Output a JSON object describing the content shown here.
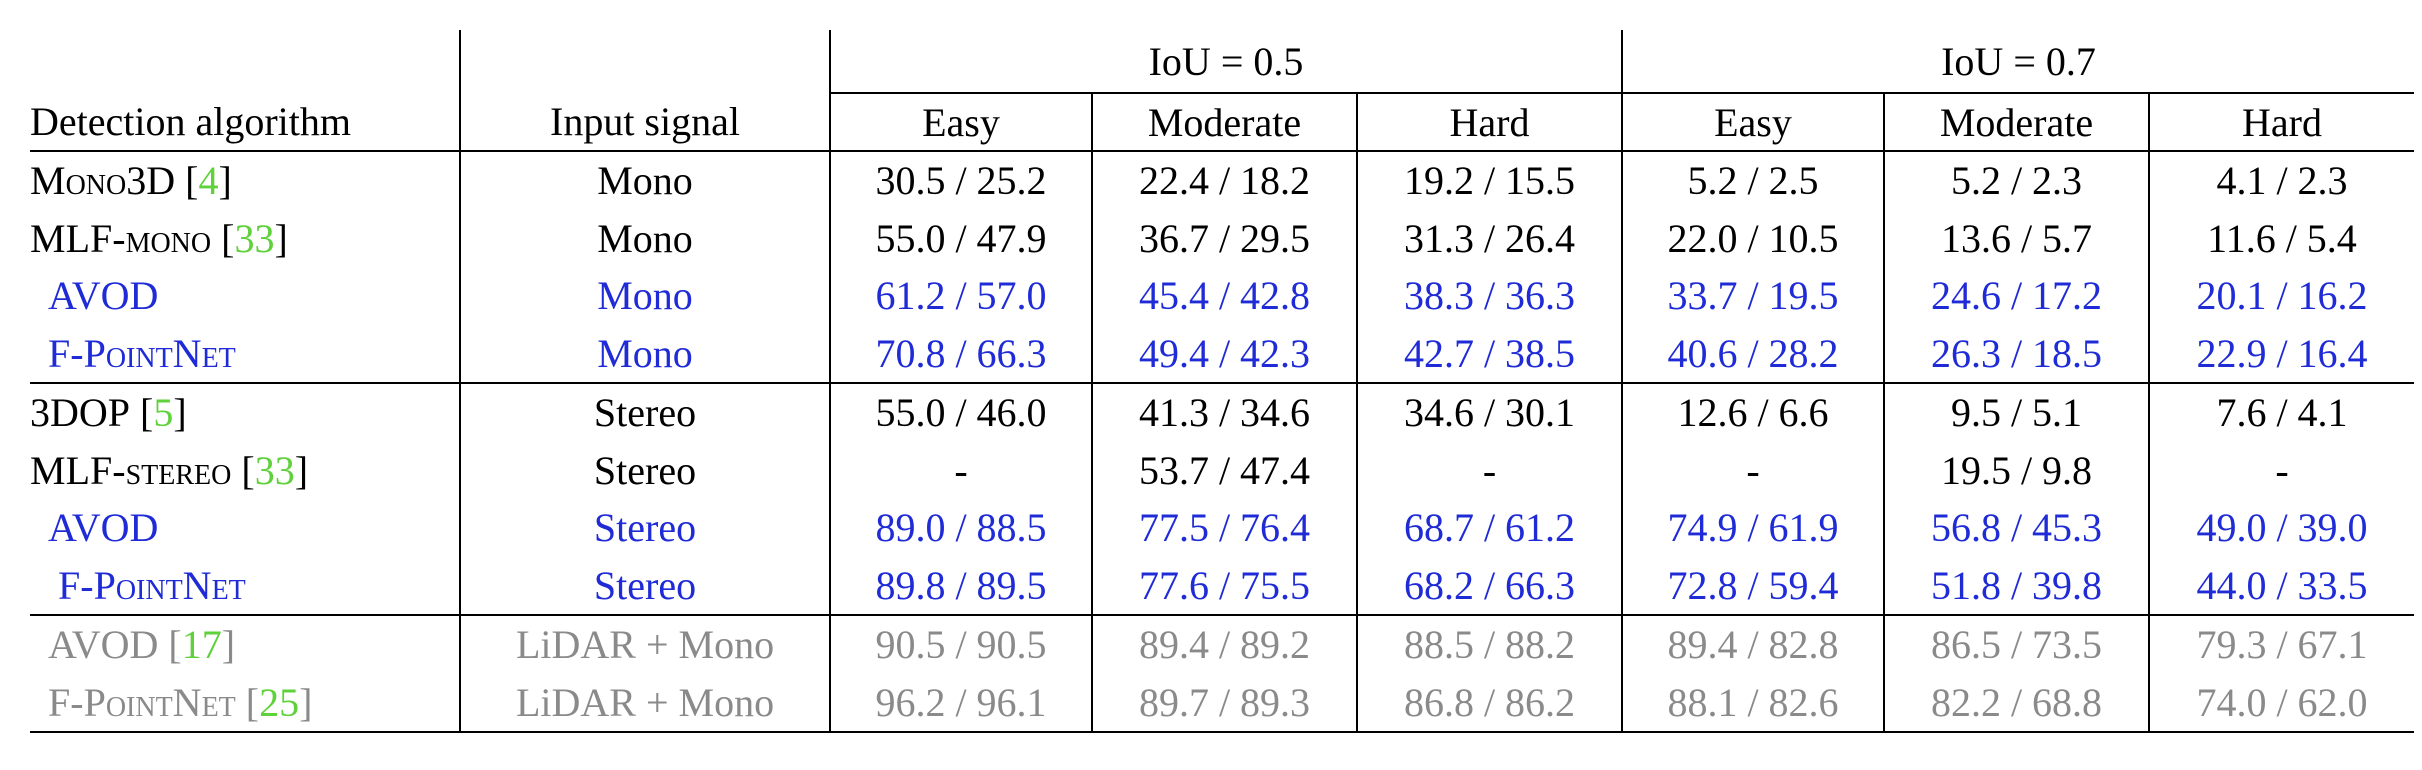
{
  "header": {
    "algo_label": "Detection algorithm",
    "input_label": "Input signal",
    "groups": [
      "IoU = 0.5",
      "IoU = 0.7"
    ],
    "subcols": [
      "Easy",
      "Moderate",
      "Hard",
      "Easy",
      "Moderate",
      "Hard"
    ]
  },
  "rows": [
    {
      "name": "Mono3D",
      "cite": "4",
      "input": "Mono",
      "style": "normal",
      "vals": [
        "30.5 / 25.2",
        "22.4 / 18.2",
        "19.2 / 15.5",
        "5.2 / 2.5",
        "5.2 / 2.3",
        "4.1 / 2.3"
      ]
    },
    {
      "name": "MLF-mono",
      "cite": "33",
      "input": "Mono",
      "style": "normal",
      "vals": [
        "55.0 / 47.9",
        "36.7 / 29.5",
        "31.3 / 26.4",
        "22.0 / 10.5",
        "13.6 / 5.7",
        "11.6 / 5.4"
      ]
    },
    {
      "name": "AVOD",
      "cite": "",
      "input": "Mono",
      "style": "blue",
      "vals": [
        "61.2 / 57.0",
        "45.4 / 42.8",
        "38.3 / 36.3",
        "33.7 / 19.5",
        "24.6 / 17.2",
        "20.1 / 16.2"
      ]
    },
    {
      "name": "F-PointNet",
      "cite": "",
      "input": "Mono",
      "style": "blue",
      "vals": [
        "70.8 / 66.3",
        "49.4 / 42.3",
        "42.7 / 38.5",
        "40.6 / 28.2",
        "26.3 / 18.5",
        "22.9 / 16.4"
      ]
    },
    {
      "name": "3DOP",
      "cite": "5",
      "input": "Stereo",
      "style": "normal",
      "vals": [
        "55.0 / 46.0",
        "41.3 / 34.6",
        "34.6 / 30.1",
        "12.6 / 6.6",
        "9.5 / 5.1",
        "7.6 / 4.1"
      ]
    },
    {
      "name": "MLF-stereo",
      "cite": "33",
      "input": "Stereo",
      "style": "normal",
      "vals": [
        "-",
        "53.7 / 47.4",
        "-",
        "-",
        "19.5 / 9.8",
        "-"
      ]
    },
    {
      "name": "AVOD",
      "cite": "",
      "input": "Stereo",
      "style": "blue",
      "vals": [
        "89.0 / 88.5",
        "77.5 / 76.4",
        "68.7 / 61.2",
        "74.9 / 61.9",
        "56.8 / 45.3",
        "49.0 / 39.0"
      ]
    },
    {
      "name": "F-PointNet",
      "cite": "",
      "input": "Stereo",
      "style": "blue",
      "vals": [
        "89.8 / 89.5",
        "77.6 / 75.5",
        "68.2 / 66.3",
        "72.8 / 59.4",
        "51.8 / 39.8",
        "44.0 / 33.5"
      ]
    },
    {
      "name": "AVOD",
      "cite": "17",
      "input": "LiDAR + Mono",
      "style": "gray",
      "vals": [
        "90.5 / 90.5",
        "89.4 / 89.2",
        "88.5 / 88.2",
        "89.4 / 82.8",
        "86.5 / 73.5",
        "79.3 / 67.1"
      ]
    },
    {
      "name": "F-PointNet",
      "cite": "25",
      "input": "LiDAR + Mono",
      "style": "gray",
      "vals": [
        "96.2 / 96.1",
        "89.7 / 89.3",
        "86.8 / 86.2",
        "88.1 / 82.6",
        "82.2 / 68.8",
        "74.0 / 62.0"
      ]
    }
  ]
}
